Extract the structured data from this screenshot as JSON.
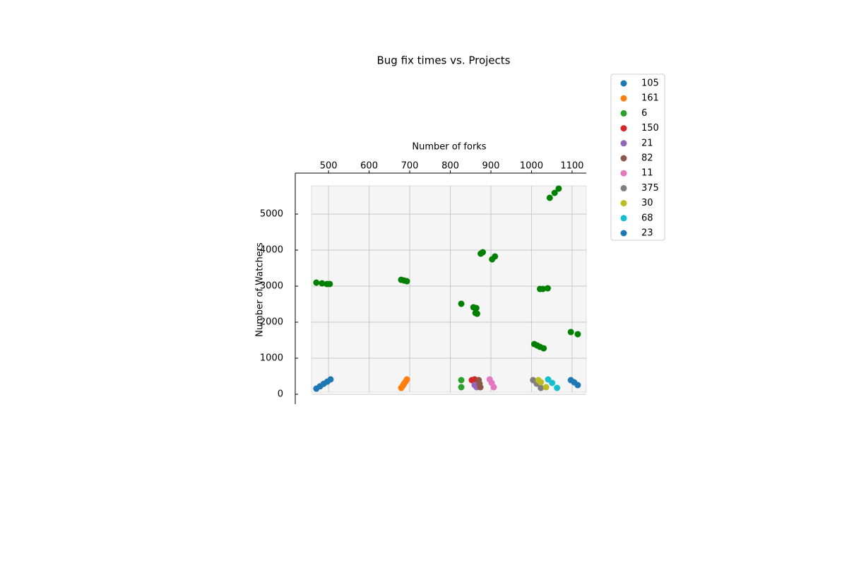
{
  "chart_data": {
    "type": "scatter",
    "title": "Bug fix times vs. Projects",
    "x_label": "Number of forks",
    "y_label": "Number of Watchers",
    "xlim": [
      418,
      1135
    ],
    "ylim": [
      -235,
      6137
    ],
    "xticks": [
      500,
      600,
      700,
      800,
      900,
      1000,
      1100
    ],
    "yticks": [
      0,
      1000,
      2000,
      3000,
      4000,
      5000
    ],
    "grid": true,
    "legend": "upper right outside",
    "series": [
      {
        "name": "105",
        "color": "#1f77b4",
        "x": [
          470,
          479,
          488,
          497,
          505
        ],
        "values": [
          157,
          220,
          290,
          350,
          412
        ]
      },
      {
        "name": "161",
        "color": "#ff7f0e",
        "x": [
          679,
          683,
          686,
          690,
          693
        ],
        "values": [
          176,
          235,
          294,
          353,
          412
        ]
      },
      {
        "name": "6",
        "color": "#2ca02c",
        "x": [
          827,
          827
        ],
        "values": [
          392,
          196
        ]
      },
      {
        "name": "150",
        "color": "#d62728",
        "x": [
          853,
          860
        ],
        "values": [
          392,
          412
        ]
      },
      {
        "name": "21",
        "color": "#9467bd",
        "x": [
          860,
          865
        ],
        "values": [
          255,
          196
        ]
      },
      {
        "name": "82",
        "color": "#8c564b",
        "x": [
          870,
          872,
          874
        ],
        "values": [
          392,
          294,
          196
        ]
      },
      {
        "name": "11",
        "color": "#e377c2",
        "x": [
          897,
          902,
          907
        ],
        "values": [
          412,
          314,
          196
        ]
      },
      {
        "name": "375",
        "color": "#7f7f7f",
        "x": [
          1004,
          1013,
          1023
        ],
        "values": [
          392,
          294,
          176
        ]
      },
      {
        "name": "30",
        "color": "#bcbd22",
        "x": [
          1017,
          1023,
          1036
        ],
        "values": [
          392,
          333,
          196
        ]
      },
      {
        "name": "68",
        "color": "#17becf",
        "x": [
          1041,
          1051,
          1063
        ],
        "values": [
          412,
          314,
          176
        ]
      },
      {
        "name": "23",
        "color": "#1f77b4",
        "x": [
          1097,
          1105,
          1114
        ],
        "values": [
          392,
          333,
          255
        ]
      },
      {
        "color": "#008000",
        "x": [
          470,
          484,
          496,
          503,
          679,
          686,
          693,
          827,
          857,
          864,
          862,
          866,
          875,
          880,
          903,
          910,
          1021,
          1028,
          1040,
          1007,
          1014,
          1021,
          1030,
          1045,
          1057,
          1067,
          1097,
          1114
        ],
        "values": [
          3098,
          3078,
          3059,
          3059,
          3176,
          3157,
          3137,
          2510,
          2412,
          2392,
          2255,
          2235,
          3902,
          3941,
          3745,
          3824,
          2922,
          2922,
          2941,
          1392,
          1353,
          1314,
          1275,
          5451,
          5588,
          5706,
          1726,
          1667
        ]
      }
    ]
  }
}
